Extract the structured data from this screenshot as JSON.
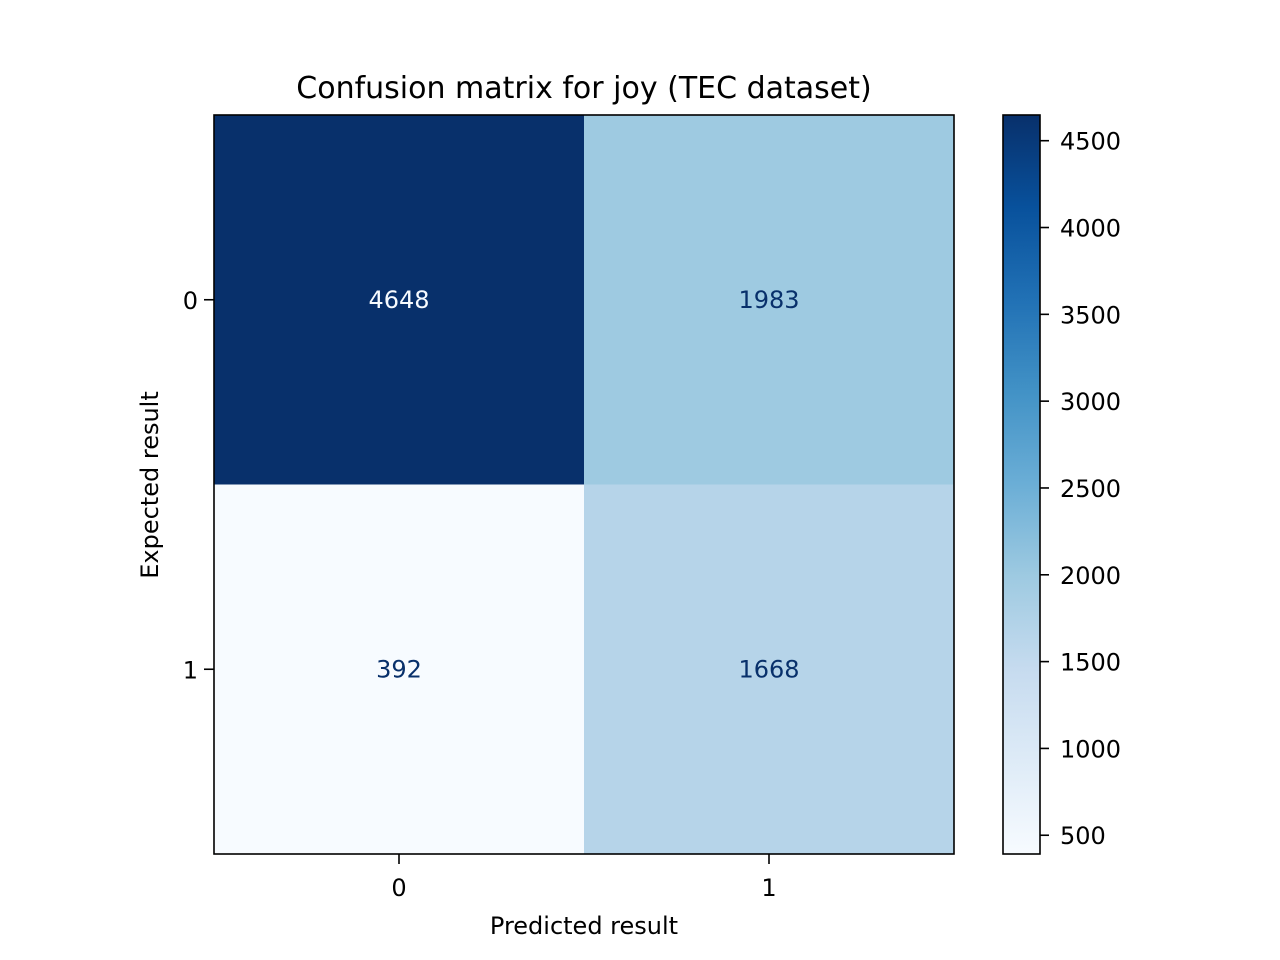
{
  "chart_data": {
    "type": "heatmap",
    "title": "Confusion matrix for joy (TEC dataset)",
    "xlabel": "Predicted result",
    "ylabel": "Expected result",
    "x_categories": [
      "0",
      "1"
    ],
    "y_categories": [
      "0",
      "1"
    ],
    "values": [
      [
        4648,
        1983
      ],
      [
        392,
        1668
      ]
    ],
    "colormap": "Blues",
    "colorbar": {
      "range": [
        392,
        4648
      ],
      "ticks": [
        500,
        1000,
        1500,
        2000,
        2500,
        3000,
        3500,
        4000,
        4500
      ],
      "tick_labels": [
        "500",
        "1000",
        "1500",
        "2000",
        "2500",
        "3000",
        "3500",
        "4000",
        "4500"
      ]
    },
    "grid": false
  }
}
